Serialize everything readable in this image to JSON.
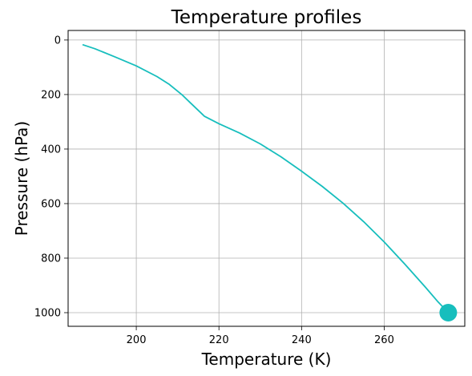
{
  "chart_data": {
    "type": "line",
    "title": "Temperature profiles",
    "xlabel": "Temperature (K)",
    "ylabel": "Pressure (hPa)",
    "xlim": [
      183.5,
      279.5
    ],
    "ylim": [
      1050,
      -35
    ],
    "y_inverted": true,
    "grid": true,
    "x_ticks": [
      200,
      220,
      240,
      260
    ],
    "y_ticks": [
      0,
      200,
      400,
      600,
      800,
      1000
    ],
    "series": [
      {
        "color": "#17bebd",
        "x": [
          187,
          190,
          195,
          200,
          205,
          208,
          211,
          213,
          216.5,
          220,
          225,
          230,
          235,
          240,
          245,
          250,
          255,
          260,
          265,
          270,
          273,
          275.5
        ],
        "y": [
          17,
          32,
          63,
          95,
          134,
          163,
          200,
          229,
          280,
          307,
          341,
          381,
          428,
          481,
          537,
          598,
          666,
          741,
          822,
          907,
          960,
          1000
        ]
      }
    ],
    "markers": [
      {
        "x": 275.5,
        "y": 1000,
        "color": "#17bebd",
        "shape": "circle"
      }
    ]
  }
}
